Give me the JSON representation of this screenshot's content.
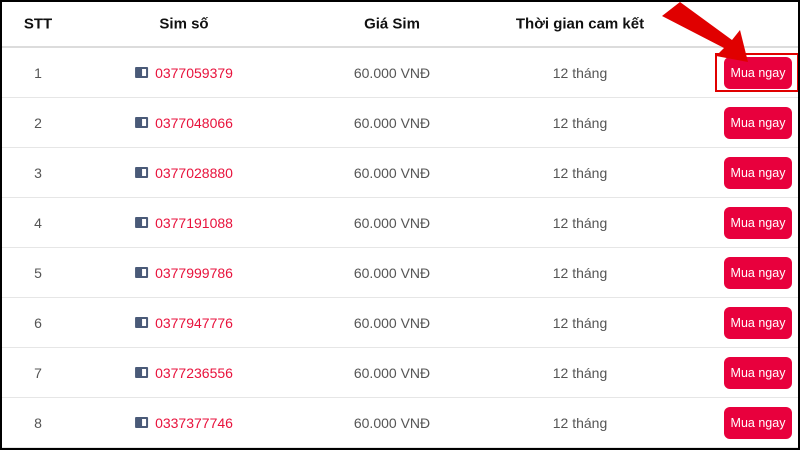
{
  "table": {
    "headers": [
      "STT",
      "Sim số",
      "Giá Sim",
      "Thời gian cam kết"
    ],
    "rows": [
      {
        "stt": "1",
        "sim": "0377059379",
        "price": "60.000 VNĐ",
        "term": "12 tháng",
        "button": "Mua ngay"
      },
      {
        "stt": "2",
        "sim": "0377048066",
        "price": "60.000 VNĐ",
        "term": "12 tháng",
        "button": "Mua ngay"
      },
      {
        "stt": "3",
        "sim": "0377028880",
        "price": "60.000 VNĐ",
        "term": "12 tháng",
        "button": "Mua ngay"
      },
      {
        "stt": "4",
        "sim": "0377191088",
        "price": "60.000 VNĐ",
        "term": "12 tháng",
        "button": "Mua ngay"
      },
      {
        "stt": "5",
        "sim": "0377999786",
        "price": "60.000 VNĐ",
        "term": "12 tháng",
        "button": "Mua ngay"
      },
      {
        "stt": "6",
        "sim": "0377947776",
        "price": "60.000 VNĐ",
        "term": "12 tháng",
        "button": "Mua ngay"
      },
      {
        "stt": "7",
        "sim": "0377236556",
        "price": "60.000 VNĐ",
        "term": "12 tháng",
        "button": "Mua ngay"
      },
      {
        "stt": "8",
        "sim": "0337377746",
        "price": "60.000 VNĐ",
        "term": "12 tháng",
        "button": "Mua ngay"
      }
    ]
  },
  "colors": {
    "accent": "#e8003d",
    "sim_number": "#e8123c",
    "annotation": "#e00000"
  },
  "annotation": {
    "icon": "arrow-pointer-icon",
    "highlight_row": 1
  }
}
